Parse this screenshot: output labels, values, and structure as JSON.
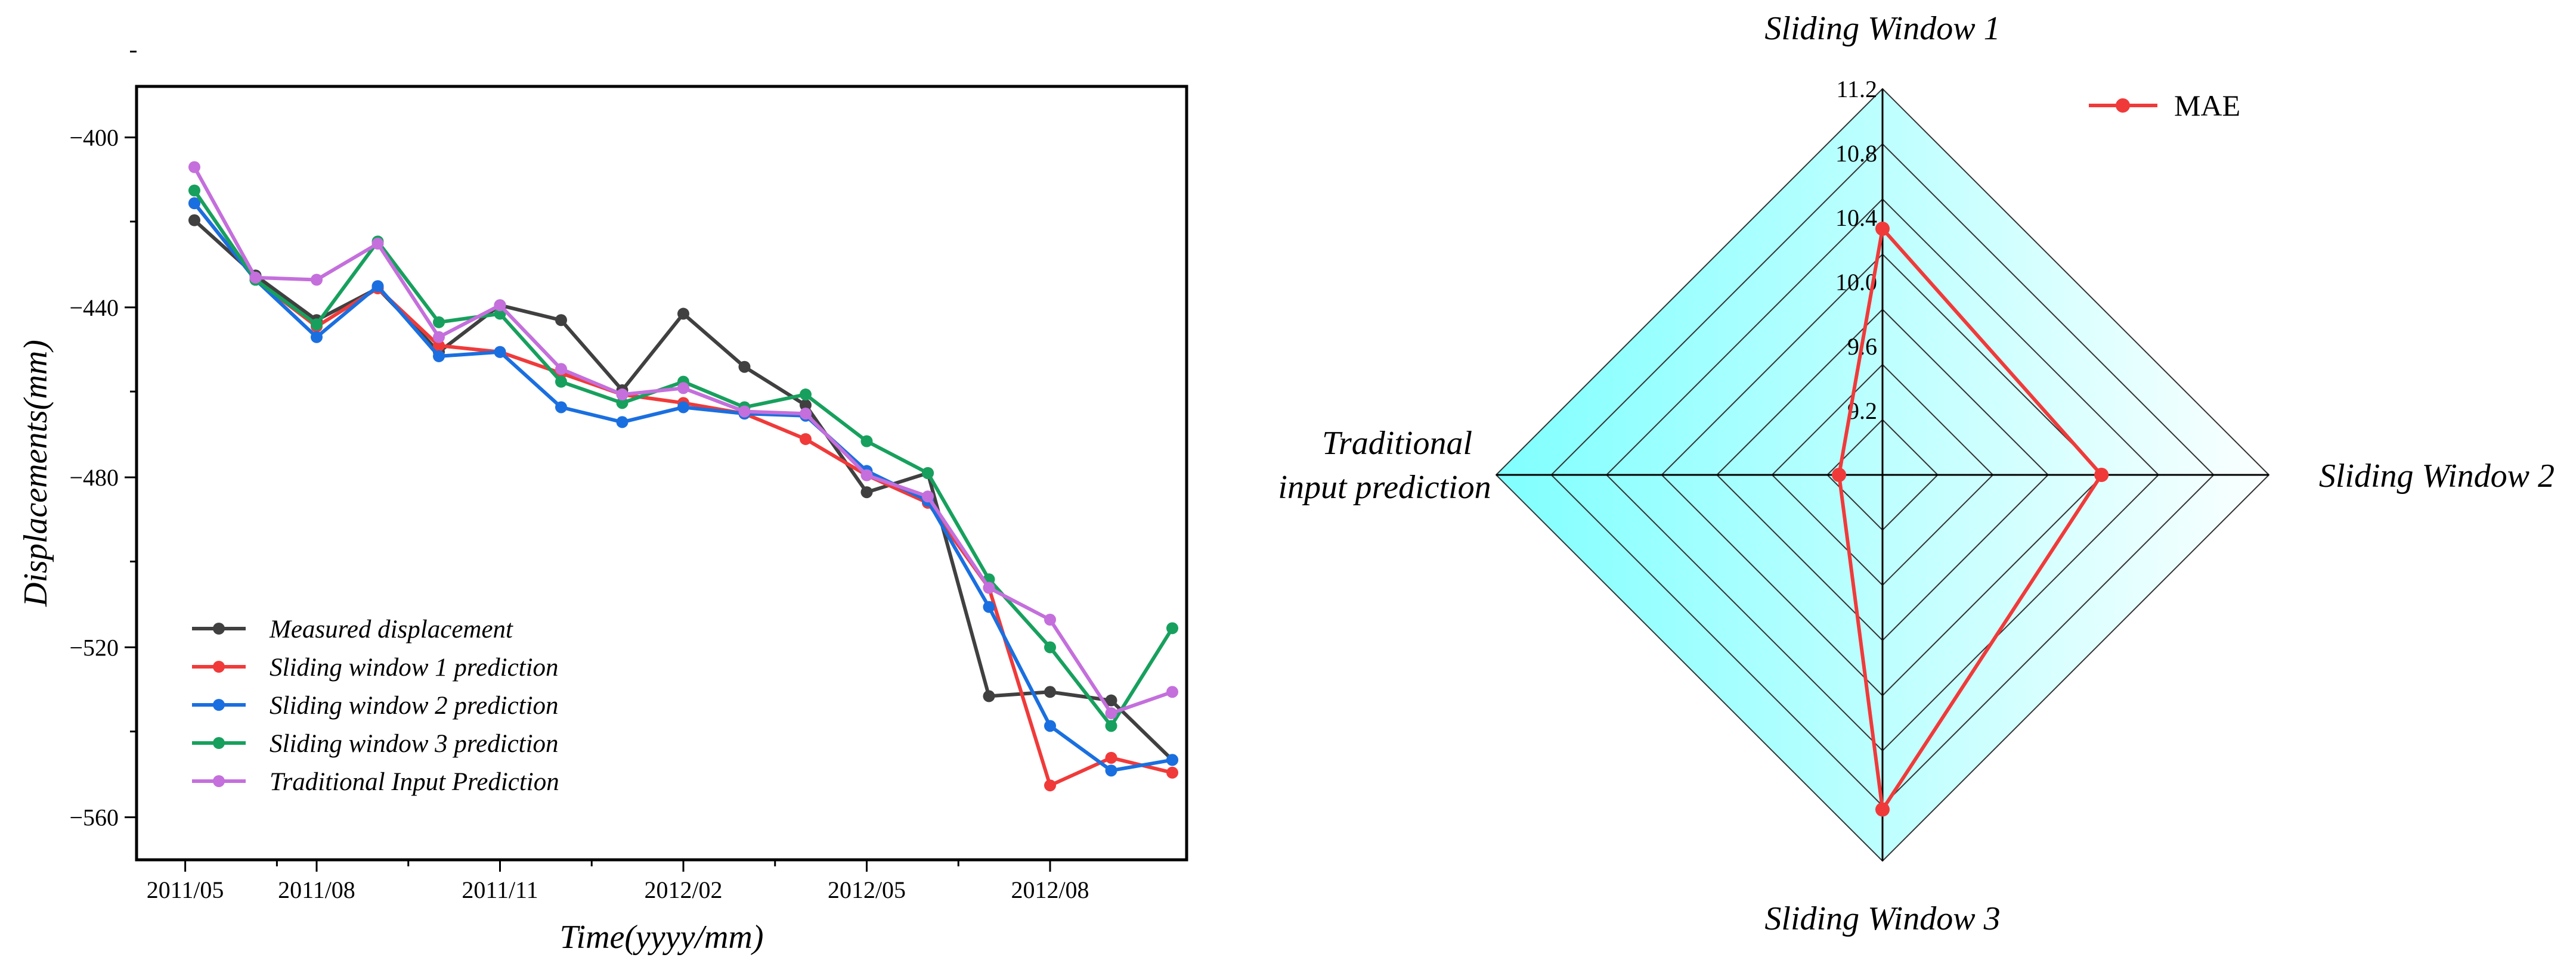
{
  "chart_data": [
    {
      "type": "line",
      "xlabel": "Time(yyyy/mm)",
      "ylabel": "Displacements(mm)",
      "x_ticks": [
        "2011/05",
        "2011/08",
        "2011/11",
        "2012/02",
        "2012/05",
        "2012/08"
      ],
      "x_tick_index": [
        -0.15,
        2,
        5,
        8,
        11,
        14
      ],
      "x_range": [
        -0.15,
        16.8
      ],
      "y_ticks": [
        -400,
        -440,
        -480,
        -520,
        -560
      ],
      "ylim": [
        -570,
        -388
      ],
      "legend": "bottom-left",
      "series": [
        {
          "name": "Measured displacement",
          "color": "#404040",
          "values": [
            -419.5,
            -432.5,
            -443,
            -435.5,
            -450.5,
            -439.5,
            -443,
            -459.5,
            -441.5,
            -454,
            -463,
            -483.5,
            -479,
            -531.5,
            -530.5,
            -532.5,
            -546.5
          ]
        },
        {
          "name": "Sliding window 1 prediction",
          "color": "#f03a3a",
          "values": [
            -415.5,
            -433.5,
            -444.5,
            -435.5,
            -449,
            -450.5,
            -455.5,
            -460.5,
            -462.5,
            -465,
            -471,
            -479.5,
            -486,
            -506,
            -552.5,
            -546,
            -549.5
          ]
        },
        {
          "name": "Sliding window 2 prediction",
          "color": "#1a6fe0",
          "values": [
            -415.5,
            -433.5,
            -447,
            -435,
            -451.5,
            -450.5,
            -463.5,
            -467,
            -463.5,
            -465,
            -465.5,
            -478.5,
            -485.5,
            -510.5,
            -538.5,
            -549,
            -546.5
          ]
        },
        {
          "name": "Sliding window 3 prediction",
          "color": "#17a05d",
          "values": [
            -412.5,
            -433.5,
            -444,
            -424.5,
            -443.5,
            -441.5,
            -457.5,
            -462.5,
            -457.5,
            -463.5,
            -460.5,
            -471.5,
            -479,
            -504,
            -520,
            -538.5,
            -515.5
          ]
        },
        {
          "name": "Traditional Input Prediction",
          "color": "#c46fdc",
          "values": [
            -407,
            -433,
            -433.5,
            -425,
            -447,
            -439.5,
            -454.5,
            -460.5,
            -459,
            -464.5,
            -465,
            -479.5,
            -484.5,
            -506,
            -513.5,
            -535.5,
            -530.5
          ]
        }
      ]
    },
    {
      "type": "radar",
      "axes": [
        "Sliding Window 1",
        "Sliding Window 2",
        "Sliding Window 3",
        "Traditional input prediction"
      ],
      "axis_lines": [
        [
          "Sliding Window 1"
        ],
        [
          "Sliding Window 2"
        ],
        [
          "Sliding Window 3"
        ],
        [
          "Traditional",
          "input prediction"
        ]
      ],
      "r_ticks": [
        "9.2",
        "9.6",
        "10.0",
        "10.4",
        "10.8",
        "11.2"
      ],
      "r_min": 8.8,
      "r_max": 11.2,
      "series": [
        {
          "name": "MAE",
          "color": "#f03a3a",
          "values": [
            10.33,
            10.16,
            10.88,
            9.07
          ]
        }
      ],
      "legend": "top-right",
      "fill_color": "#80ffff"
    }
  ]
}
